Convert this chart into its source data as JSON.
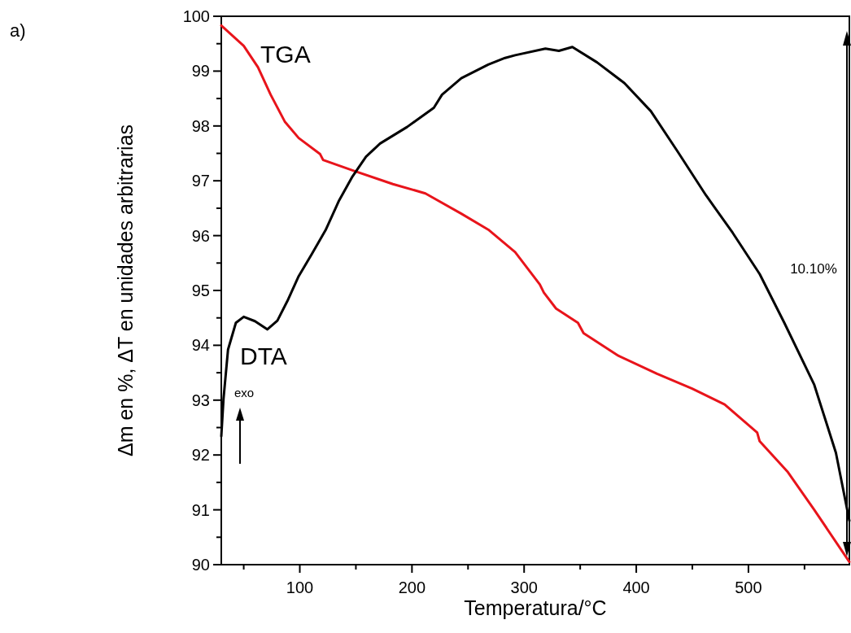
{
  "chart_data": {
    "type": "line",
    "xlabel": "Temperatura/°C",
    "ylabel": "Δm en %, ΔT en unidades arbitrarias",
    "xlim": [
      30,
      590
    ],
    "ylim": [
      90,
      100
    ],
    "xticks": [
      {
        "value": 50,
        "label": null
      },
      100,
      {
        "value": 150,
        "label": null
      },
      200,
      {
        "value": 250,
        "label": null
      },
      300,
      {
        "value": 350,
        "label": null
      },
      400,
      {
        "value": 450,
        "label": null
      },
      500,
      {
        "value": 550,
        "label": null
      }
    ],
    "yticks": [
      90,
      {
        "value": 90.5,
        "label": null
      },
      91,
      {
        "value": 91.5,
        "label": null
      },
      92,
      {
        "value": 92.5,
        "label": null
      },
      93,
      {
        "value": 93.5,
        "label": null
      },
      94,
      {
        "value": 94.5,
        "label": null
      },
      95,
      {
        "value": 95.5,
        "label": null
      },
      96,
      {
        "value": 96.5,
        "label": null
      },
      97,
      {
        "value": 97.5,
        "label": null
      },
      98,
      {
        "value": 98.5,
        "label": null
      },
      99,
      {
        "value": 99.5,
        "label": null
      },
      100
    ],
    "grid": false,
    "legend": false,
    "marker": "none",
    "line_style": "solid",
    "annotations": [
      "a)",
      "exo",
      "10.10%"
    ],
    "series": [
      {
        "name": "TGA",
        "color": "#e8141b",
        "x": [
          30,
          50,
          62.7,
          74,
          86.6,
          99,
          118,
          120.8,
          147,
          183,
          212,
          244,
          268,
          292,
          314,
          317.6,
          328.5,
          348,
          353,
          384,
          418.5,
          449.8,
          478.8,
          507.8,
          510,
          534.7,
          558.7,
          590
        ],
        "values": [
          99.83,
          99.46,
          99.07,
          98.57,
          98.08,
          97.78,
          97.49,
          97.38,
          97.19,
          96.94,
          96.77,
          96.4,
          96.11,
          95.7,
          95.11,
          94.96,
          94.67,
          94.41,
          94.22,
          93.81,
          93.48,
          93.21,
          92.92,
          92.41,
          92.25,
          91.7,
          91.0,
          90.05
        ]
      },
      {
        "name": "DTA",
        "color": "#000000",
        "x": [
          30,
          32,
          36,
          43,
          50,
          60,
          71,
          80,
          89,
          99,
          110.6,
          123,
          135,
          147,
          159,
          171.6,
          195.6,
          219.5,
          226.8,
          244,
          268,
          283,
          292,
          319,
          331,
          343,
          365,
          389.5,
          413,
          437,
          462,
          486,
          510,
          532,
          558.7,
          578,
          590
        ],
        "values": [
          92.34,
          93.03,
          93.92,
          94.41,
          94.52,
          94.44,
          94.29,
          94.45,
          94.81,
          95.26,
          95.66,
          96.1,
          96.64,
          97.08,
          97.44,
          97.68,
          97.98,
          98.33,
          98.57,
          98.87,
          99.12,
          99.24,
          99.29,
          99.41,
          99.37,
          99.44,
          99.16,
          98.78,
          98.27,
          97.53,
          96.74,
          96.05,
          95.3,
          94.41,
          93.28,
          92.04,
          90.8
        ]
      }
    ]
  }
}
